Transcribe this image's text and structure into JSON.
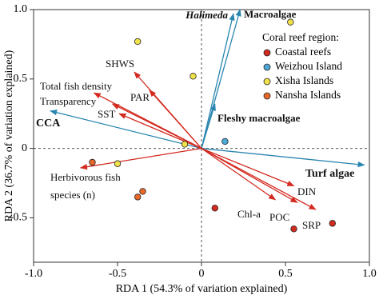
{
  "chart_data": {
    "type": "biplot",
    "xlabel": "RDA 1 (54.3% of variation explained)",
    "ylabel": "RDA 2 (36.7% of variation explained)",
    "xlim": [
      -1.0,
      1.0
    ],
    "ylim": [
      -0.82,
      1.0
    ],
    "xticks": [
      {
        "value": -1.0,
        "label": "-1.0"
      },
      {
        "value": -0.5,
        "label": "-0.5"
      },
      0,
      0.5,
      {
        "value": 1.0,
        "label": "1.0"
      }
    ],
    "yticks": [
      {
        "value": -0.5,
        "label": "-0.5"
      },
      0,
      0.5,
      {
        "value": 1.0,
        "label": "1.0"
      }
    ],
    "legend_title": "Coral reef region:",
    "legend": "upper right",
    "vectors": [
      {
        "name": "Halimeda",
        "color": "#2a86b0",
        "x": 0.19,
        "y": 0.97
      },
      {
        "name": "Macroalgae",
        "color": "#2a86b0",
        "x": 0.23,
        "y": 1.0
      },
      {
        "name": "Fleshy macroalgae",
        "color": "#2a86b0",
        "x": 0.08,
        "y": 0.32
      },
      {
        "name": "Turf algae",
        "color": "#2a86b0",
        "x": 0.97,
        "y": -0.12
      },
      {
        "name": "CCA",
        "color": "#2a86b0",
        "x": -0.9,
        "y": 0.27
      },
      {
        "name": "SHWS",
        "color": "#d42a20",
        "x": -0.4,
        "y": 0.55
      },
      {
        "name": "Total fish density",
        "color": "#d42a20",
        "x": -0.64,
        "y": 0.4
      },
      {
        "name": "Transparency",
        "color": "#d42a20",
        "x": -0.53,
        "y": 0.32
      },
      {
        "name": "PAR",
        "color": "#d42a20",
        "x": -0.31,
        "y": 0.42
      },
      {
        "name": "SST",
        "color": "#d42a20",
        "x": -0.49,
        "y": 0.25
      },
      {
        "name": "Herbivorous fish\nspecies (n)",
        "color": "#d42a20",
        "x": -0.72,
        "y": -0.14
      },
      {
        "name": "DIN",
        "color": "#d42a20",
        "x": 0.55,
        "y": -0.27
      },
      {
        "name": "Chl-a",
        "color": "#d42a20",
        "x": 0.44,
        "y": -0.37
      },
      {
        "name": "POC",
        "color": "#d42a20",
        "x": 0.57,
        "y": -0.39
      },
      {
        "name": "SRP",
        "color": "#d42a20",
        "x": 0.68,
        "y": -0.44
      }
    ],
    "series": [
      {
        "name": "Coastal reefs",
        "color": "#d42a20",
        "x": [
          0.08,
          0.55,
          0.78
        ],
        "y": [
          -0.43,
          -0.58,
          -0.54
        ]
      },
      {
        "name": "Weizhou Island",
        "color": "#4fa9d6",
        "x": [
          0.14
        ],
        "y": [
          0.05
        ]
      },
      {
        "name": "Xisha Islands",
        "color": "#f2e24a",
        "x": [
          -0.38,
          -0.05,
          0.53,
          -0.1,
          -0.5
        ],
        "y": [
          0.77,
          0.52,
          0.91,
          0.03,
          -0.11
        ]
      },
      {
        "name": "Nansha Islands",
        "color": "#e8672a",
        "x": [
          -0.65,
          -0.35,
          -0.38
        ],
        "y": [
          -0.1,
          -0.31,
          -0.35
        ]
      }
    ]
  }
}
